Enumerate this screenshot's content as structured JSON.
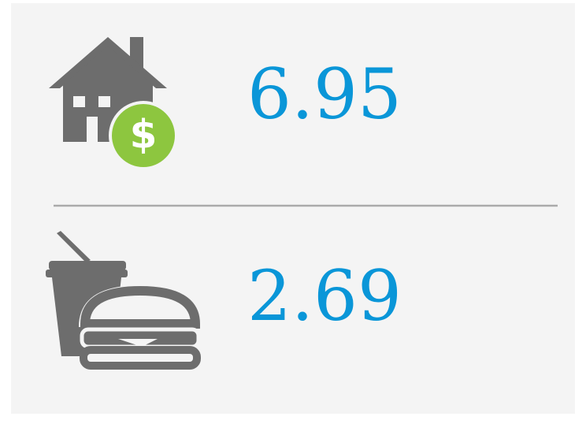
{
  "items": [
    {
      "value": 6.95
    },
    {
      "value": 2.69
    }
  ]
}
